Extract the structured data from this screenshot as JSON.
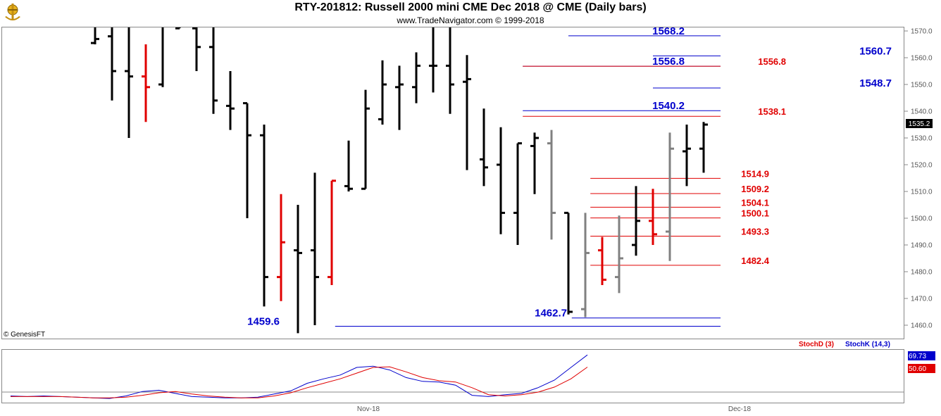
{
  "header": {
    "title": "RTY-201812:  Russell 2000 mini CME Dec 2018 @ CME  (Daily bars)",
    "subtitle": "www.TradeNavigator.com © 1999-2018",
    "credit": "© GenesisFT"
  },
  "colors": {
    "up": "#000000",
    "down": "#e00000",
    "inside": "#808080",
    "blue_level": "#0000cc",
    "red_level": "#e00000",
    "stoch_k": "#0000cc",
    "stoch_d": "#e00000"
  },
  "chart_data": [
    {
      "type": "ohlc",
      "title": "RTY-201812:  Russell 2000 mini CME Dec 2018 @ CME  (Daily bars)",
      "ylim": [
        1456,
        1573
      ],
      "y_ticks": [
        "1570.0",
        "1560.0",
        "1550.0",
        "1540.0",
        "1530.0",
        "1520.0",
        "1510.0",
        "1500.0",
        "1490.0",
        "1480.0",
        "1470.0",
        "1460.0"
      ],
      "x_labels": [
        "Nov-18",
        "Dec-18"
      ],
      "last_price": "1535.2",
      "bars": [
        {
          "o": 1565.5,
          "h": 1590,
          "l": 1565,
          "c": 1567,
          "k": "up"
        },
        {
          "o": 1568,
          "h": 1590,
          "l": 1544,
          "c": 1555,
          "k": "up"
        },
        {
          "o": 1555,
          "h": 1590,
          "l": 1530,
          "c": 1553,
          "k": "up"
        },
        {
          "o": 1553,
          "h": 1565,
          "l": 1536,
          "c": 1549,
          "k": "down"
        },
        {
          "o": 1550,
          "h": 1573,
          "l": 1549,
          "c": 1573,
          "k": "up"
        },
        {
          "o": 1571,
          "h": 1590,
          "l": 1571,
          "c": 1573,
          "k": "up"
        },
        {
          "o": 1571,
          "h": 1590,
          "l": 1555,
          "c": 1564,
          "k": "up"
        },
        {
          "o": 1564,
          "h": 1590,
          "l": 1539,
          "c": 1544,
          "k": "up"
        },
        {
          "o": 1542,
          "h": 1555,
          "l": 1533,
          "c": 1541,
          "k": "up"
        },
        {
          "o": 1543,
          "h": 1543,
          "l": 1500,
          "c": 1531,
          "k": "up"
        },
        {
          "o": 1531,
          "h": 1535,
          "l": 1467,
          "c": 1478,
          "k": "up"
        },
        {
          "o": 1478,
          "h": 1509,
          "l": 1469,
          "c": 1491,
          "k": "down"
        },
        {
          "o": 1488,
          "h": 1505,
          "l": 1457,
          "c": 1487,
          "k": "up"
        },
        {
          "o": 1488,
          "h": 1517,
          "l": 1460,
          "c": 1478,
          "k": "up"
        },
        {
          "o": 1478,
          "h": 1514,
          "l": 1475,
          "c": 1514,
          "k": "down"
        },
        {
          "o": 1512,
          "h": 1529,
          "l": 1510,
          "c": 1511,
          "k": "up"
        },
        {
          "o": 1511,
          "h": 1548,
          "l": 1511,
          "c": 1541,
          "k": "up"
        },
        {
          "o": 1537,
          "h": 1559,
          "l": 1535,
          "c": 1550,
          "k": "up"
        },
        {
          "o": 1549,
          "h": 1557,
          "l": 1533,
          "c": 1550,
          "k": "up"
        },
        {
          "o": 1549,
          "h": 1562,
          "l": 1543,
          "c": 1557,
          "k": "up"
        },
        {
          "o": 1557,
          "h": 1580,
          "l": 1547,
          "c": 1557,
          "k": "up"
        },
        {
          "o": 1557,
          "h": 1580,
          "l": 1539,
          "c": 1550,
          "k": "up"
        },
        {
          "o": 1551,
          "h": 1561,
          "l": 1518,
          "c": 1552,
          "k": "up"
        },
        {
          "o": 1522,
          "h": 1541,
          "l": 1512,
          "c": 1519,
          "k": "up"
        },
        {
          "o": 1520,
          "h": 1534,
          "l": 1494,
          "c": 1502,
          "k": "up"
        },
        {
          "o": 1502,
          "h": 1528,
          "l": 1490,
          "c": 1528,
          "k": "up"
        },
        {
          "o": 1527,
          "h": 1532,
          "l": 1509,
          "c": 1530,
          "k": "up"
        },
        {
          "o": 1528,
          "h": 1533,
          "l": 1492,
          "c": 1502,
          "k": "inside"
        },
        {
          "o": 1502,
          "h": 1502,
          "l": 1464,
          "c": 1465,
          "k": "up"
        },
        {
          "o": 1466,
          "h": 1502,
          "l": 1463,
          "c": 1487,
          "k": "inside"
        },
        {
          "o": 1488,
          "h": 1493,
          "l": 1475,
          "c": 1477,
          "k": "down"
        },
        {
          "o": 1478,
          "h": 1501,
          "l": 1472,
          "c": 1485,
          "k": "inside"
        },
        {
          "o": 1490,
          "h": 1512,
          "l": 1486,
          "c": 1499,
          "k": "up"
        },
        {
          "o": 1499,
          "h": 1511,
          "l": 1490,
          "c": 1494,
          "k": "down"
        },
        {
          "o": 1495,
          "h": 1532,
          "l": 1484,
          "c": 1526,
          "k": "inside"
        },
        {
          "o": 1525,
          "h": 1535,
          "l": 1512,
          "c": 1526,
          "k": "up"
        },
        {
          "o": 1526,
          "h": 1536,
          "l": 1517,
          "c": 1535,
          "k": "up"
        }
      ],
      "levels": [
        {
          "value": 1568.2,
          "label": "1568.2",
          "color": "blue",
          "x0": 28,
          "x1": 37
        },
        {
          "value": 1560.7,
          "label": "1560.7",
          "color": "blue",
          "x0": 33,
          "x1": 37
        },
        {
          "value": 1556.8,
          "label": "1556.8",
          "color": "blue",
          "x0": 25.3,
          "x1": 37
        },
        {
          "value": 1556.8,
          "label": "1556.8",
          "color": "red",
          "x0": 25.3,
          "x1": 37
        },
        {
          "value": 1548.7,
          "label": "1548.7",
          "color": "blue",
          "x0": 33,
          "x1": 37
        },
        {
          "value": 1540.2,
          "label": "1540.2",
          "color": "blue",
          "x0": 25.3,
          "x1": 37
        },
        {
          "value": 1538.1,
          "label": "1538.1",
          "color": "red",
          "x0": 25.3,
          "x1": 37
        },
        {
          "value": 1514.9,
          "label": "1514.9",
          "color": "red",
          "x0": 29.3,
          "x1": 37
        },
        {
          "value": 1509.2,
          "label": "1509.2",
          "color": "red",
          "x0": 29.3,
          "x1": 37
        },
        {
          "value": 1504.1,
          "label": "1504.1",
          "color": "red",
          "x0": 29.3,
          "x1": 37
        },
        {
          "value": 1500.1,
          "label": "1500.1",
          "color": "red",
          "x0": 29.3,
          "x1": 37
        },
        {
          "value": 1493.3,
          "label": "1493.3",
          "color": "red",
          "x0": 29.3,
          "x1": 37
        },
        {
          "value": 1482.4,
          "label": "1482.4",
          "color": "red",
          "x0": 29.3,
          "x1": 37
        },
        {
          "value": 1462.7,
          "label": "1462.7",
          "color": "blue",
          "x0": 28.2,
          "x1": 37
        },
        {
          "value": 1459.6,
          "label": "1459.6",
          "color": "blue",
          "x0": 14.2,
          "x1": 37
        }
      ]
    },
    {
      "type": "line",
      "title": "",
      "ylim": [
        0,
        100
      ],
      "legend": [
        "StochD (3)",
        "StochK (14,3)"
      ],
      "last_values": {
        "stoch_k": "69.73",
        "stoch_d": "50.60"
      },
      "series": [
        {
          "name": "StochK (14,3)",
          "values": [
            5,
            4,
            5,
            4,
            3,
            2,
            1,
            5,
            12,
            14,
            9,
            4,
            3,
            2,
            2,
            3,
            8,
            13,
            25,
            32,
            38,
            50,
            52,
            46,
            34,
            28,
            27,
            22,
            6,
            4,
            7,
            9,
            18,
            30,
            50,
            69.73
          ]
        },
        {
          "name": "StochD (3)",
          "values": [
            4,
            4,
            4,
            4,
            3,
            2,
            2,
            3,
            6,
            10,
            12,
            8,
            5,
            3,
            2,
            2,
            5,
            10,
            18,
            25,
            32,
            41,
            50,
            51,
            43,
            34,
            29,
            27,
            18,
            7,
            5,
            7,
            11,
            19,
            32,
            50.6
          ]
        }
      ]
    }
  ]
}
